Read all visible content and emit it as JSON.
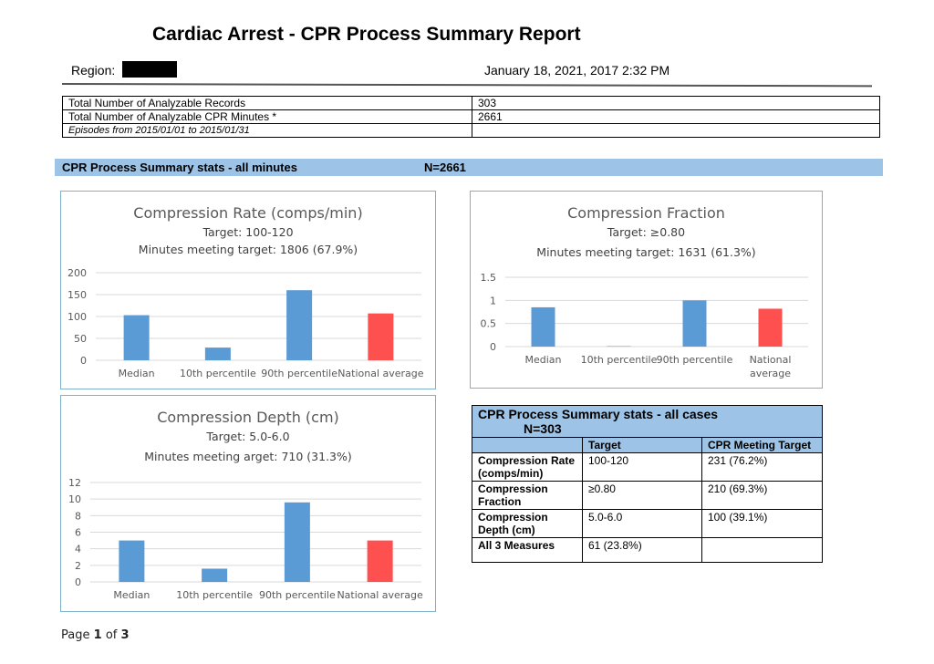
{
  "report": {
    "title": "Cardiac Arrest - CPR Process Summary Report",
    "region_label": "Region:",
    "region_value": "[redacted]",
    "datetime": "January 18, 2021, 2017 2:32 PM"
  },
  "info_table": {
    "rows": [
      {
        "label": "Total Number of Analyzable Records",
        "value": "303"
      },
      {
        "label": "Total Number of Analyzable CPR Minutes *",
        "value": "2661"
      },
      {
        "label": "Episodes from 2015/01/01 to 2015/01/31",
        "value": ""
      }
    ]
  },
  "minutes_band": {
    "label": "CPR Process Summary stats - all minutes",
    "n": "N=2661"
  },
  "colors": {
    "bar": "#5b9bd5",
    "national": "#ff5050",
    "band": "#9dc3e6",
    "grid": "#d9d9d9"
  },
  "chart_data": [
    {
      "type": "bar",
      "title": "Compression Rate (comps/min)",
      "subtitle": "Target: 100-120",
      "subtitle2": "Minutes meeting target: 1806 (67.9%)",
      "categories": [
        "Median",
        "10th percentile",
        "90th percentile",
        "National average"
      ],
      "values": [
        103,
        29,
        160,
        107
      ],
      "highlight_index": 3,
      "ylim": [
        0,
        200
      ],
      "yticks": [
        0,
        50,
        100,
        150,
        200
      ],
      "grid": true
    },
    {
      "type": "bar",
      "title": "Compression Fraction",
      "subtitle": "Target: ≥0.80",
      "subtitle2": "Minutes meeting target: 1631 (61.3%)",
      "categories": [
        "Median",
        "10th percentile",
        "90th percentile",
        "National average"
      ],
      "values": [
        0.85,
        0.01,
        1.0,
        0.82
      ],
      "highlight_index": 3,
      "ylim": [
        0,
        1.5
      ],
      "yticks": [
        0,
        0.5,
        1,
        1.5
      ],
      "grid": true
    },
    {
      "type": "bar",
      "title": "Compression Depth (cm)",
      "subtitle": "Target: 5.0-6.0",
      "subtitle2": "Minutes meeting arget: 710 (31.3%)",
      "categories": [
        "Median",
        "10th percentile",
        "90th percentile",
        "National average"
      ],
      "values": [
        5.0,
        1.6,
        9.6,
        5.0
      ],
      "highlight_index": 3,
      "ylim": [
        0,
        12
      ],
      "yticks": [
        0,
        2,
        4,
        6,
        8,
        10,
        12
      ],
      "grid": true
    }
  ],
  "cases_table": {
    "title": "CPR Process Summary stats - all cases",
    "n": "N=303",
    "headers": [
      "",
      "Target",
      "CPR Meeting Target"
    ],
    "rows": [
      {
        "measure": "Compression Rate (comps/min)",
        "target": "100-120",
        "meeting": "231 (76.2%)"
      },
      {
        "measure": "Compression Fraction",
        "target": "≥0.80",
        "meeting": "210 (69.3%)"
      },
      {
        "measure": "Compression Depth (cm)",
        "target": "5.0-6.0",
        "meeting": "100 (39.1%)"
      },
      {
        "measure": "All 3 Measures",
        "target": "61 (23.8%)",
        "meeting": ""
      }
    ]
  },
  "footer": {
    "page_prefix": "Page",
    "page": "1",
    "of": "of",
    "total": "3"
  }
}
